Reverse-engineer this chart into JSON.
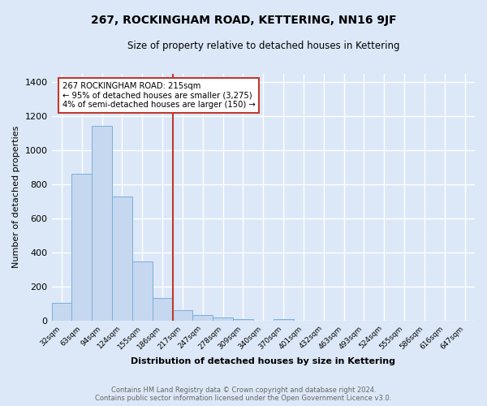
{
  "title": "267, ROCKINGHAM ROAD, KETTERING, NN16 9JF",
  "subtitle": "Size of property relative to detached houses in Kettering",
  "xlabel": "Distribution of detached houses by size in Kettering",
  "ylabel": "Number of detached properties",
  "bar_labels": [
    "32sqm",
    "63sqm",
    "94sqm",
    "124sqm",
    "155sqm",
    "186sqm",
    "217sqm",
    "247sqm",
    "278sqm",
    "309sqm",
    "340sqm",
    "370sqm",
    "401sqm",
    "432sqm",
    "463sqm",
    "493sqm",
    "524sqm",
    "555sqm",
    "586sqm",
    "616sqm",
    "647sqm"
  ],
  "bar_values": [
    105,
    860,
    1145,
    730,
    345,
    130,
    60,
    30,
    20,
    10,
    0,
    8,
    0,
    0,
    0,
    0,
    0,
    0,
    0,
    0,
    0
  ],
  "bar_color": "#c5d8f0",
  "bar_edge_color": "#7aaedb",
  "vline_color": "#c0392b",
  "annotation_line1": "267 ROCKINGHAM ROAD: 215sqm",
  "annotation_line2": "← 95% of detached houses are smaller (3,275)",
  "annotation_line3": "4% of semi-detached houses are larger (150) →",
  "annotation_box_color": "#c0392b",
  "ylim": [
    0,
    1450
  ],
  "yticks": [
    0,
    200,
    400,
    600,
    800,
    1000,
    1200,
    1400
  ],
  "fig_bg_color": "#dce8f8",
  "plot_bg_color": "#dce8f8",
  "grid_color": "#ffffff",
  "footer_line1": "Contains HM Land Registry data © Crown copyright and database right 2024.",
  "footer_line2": "Contains public sector information licensed under the Open Government Licence v3.0."
}
